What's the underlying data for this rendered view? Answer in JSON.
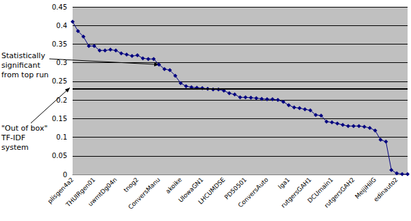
{
  "chart_data": {
    "type": "line",
    "categories": [
      "plisgen4a2",
      null,
      null,
      null,
      "THUIRgen01",
      null,
      null,
      null,
      "uwmtDg04n",
      null,
      null,
      null,
      "tnog2",
      null,
      null,
      null,
      "ConversManu",
      null,
      null,
      null,
      "akoike",
      null,
      null,
      null,
      "UIowaGN1",
      null,
      null,
      null,
      "LHCUMDSE",
      null,
      null,
      null,
      "PD50501",
      null,
      null,
      null,
      "ConversAuto",
      null,
      null,
      null,
      "lga1",
      null,
      null,
      null,
      "rutgersGAH1",
      null,
      null,
      null,
      "DCUmain1",
      null,
      null,
      null,
      "rutgersGAH2",
      null,
      null,
      null,
      "MeijiHilG",
      null,
      null,
      null,
      "edinauto2",
      null,
      null
    ],
    "values": [
      0.41,
      0.385,
      0.37,
      0.345,
      0.345,
      0.333,
      0.333,
      0.335,
      0.333,
      0.325,
      0.322,
      0.318,
      0.32,
      0.312,
      0.31,
      0.31,
      0.295,
      0.283,
      0.28,
      0.265,
      0.245,
      0.237,
      0.234,
      0.233,
      0.232,
      0.23,
      0.228,
      0.228,
      0.225,
      0.218,
      0.215,
      0.207,
      0.207,
      0.206,
      0.205,
      0.203,
      0.202,
      0.202,
      0.2,
      0.195,
      0.186,
      0.18,
      0.178,
      0.175,
      0.172,
      0.16,
      0.158,
      0.142,
      0.14,
      0.137,
      0.133,
      0.13,
      0.13,
      0.13,
      0.128,
      0.125,
      0.118,
      0.093,
      0.088,
      0.012,
      0.003,
      0.001,
      0.001
    ],
    "color": "#000080",
    "marker": "diamond",
    "ylim": [
      0,
      0.45
    ],
    "yticks": [
      0,
      0.05,
      0.1,
      0.15,
      0.2,
      0.25,
      0.3,
      0.35,
      0.4,
      0.45
    ],
    "grid": true,
    "reference_line": {
      "value": 0.233,
      "color": "#000000"
    },
    "annotations": [
      {
        "text": "Statistically significant from top run",
        "x_index": 16,
        "y": 0.295
      },
      {
        "text": "\"Out of box\" TF-IDF system",
        "x_index": 0,
        "y": 0.233
      }
    ]
  }
}
